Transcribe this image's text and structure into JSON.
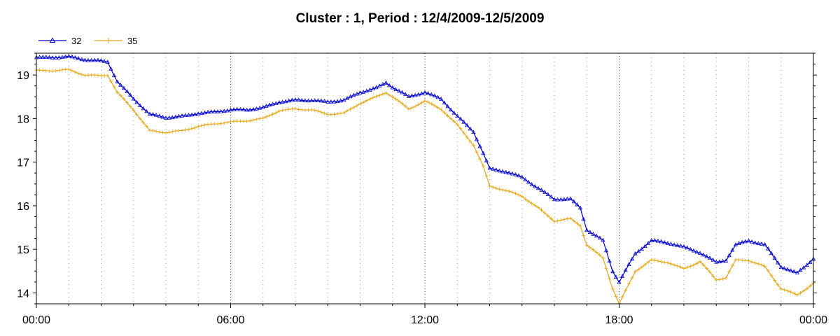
{
  "chart_data": {
    "type": "line",
    "title": "Cluster : 1, Period : 12/4/2009-12/5/2009",
    "xlabel": "",
    "ylabel": "",
    "x_ticks": [
      {
        "hour": 0,
        "label": "00:00"
      },
      {
        "hour": 6,
        "label": "06:00"
      },
      {
        "hour": 12,
        "label": "12:00"
      },
      {
        "hour": 18,
        "label": "18:00"
      },
      {
        "hour": 24,
        "label": "00:00"
      }
    ],
    "y_ticks": [
      {
        "value": 14,
        "label": "14"
      },
      {
        "value": 15,
        "label": "15"
      },
      {
        "value": 16,
        "label": "16"
      },
      {
        "value": 17,
        "label": "17"
      },
      {
        "value": 18,
        "label": "18"
      },
      {
        "value": 19,
        "label": "19"
      }
    ],
    "xlim_hours": [
      0,
      24
    ],
    "ylim": [
      13.75,
      19.5
    ],
    "grid": {
      "vertical_dotted": true,
      "horizontal": false
    },
    "legend_position": "top-left",
    "series": [
      {
        "name": "32",
        "color": "#0000cc",
        "marker": "triangle",
        "points": [
          [
            0,
            19.4
          ],
          [
            0.5,
            19.4
          ],
          [
            1,
            19.42
          ],
          [
            1.5,
            19.35
          ],
          [
            2,
            19.32
          ],
          [
            2.2,
            19.3
          ],
          [
            2.5,
            18.85
          ],
          [
            3,
            18.45
          ],
          [
            3.5,
            18.1
          ],
          [
            4,
            18.02
          ],
          [
            4.5,
            18.05
          ],
          [
            5,
            18.12
          ],
          [
            5.5,
            18.15
          ],
          [
            6,
            18.2
          ],
          [
            6.5,
            18.2
          ],
          [
            7,
            18.25
          ],
          [
            7.5,
            18.38
          ],
          [
            8,
            18.42
          ],
          [
            8.5,
            18.42
          ],
          [
            9,
            18.38
          ],
          [
            9.5,
            18.42
          ],
          [
            10,
            18.6
          ],
          [
            10.5,
            18.7
          ],
          [
            10.8,
            18.82
          ],
          [
            11,
            18.72
          ],
          [
            11.5,
            18.5
          ],
          [
            12,
            18.6
          ],
          [
            12.5,
            18.45
          ],
          [
            13,
            18.05
          ],
          [
            13.5,
            17.7
          ],
          [
            13.8,
            17.2
          ],
          [
            14,
            16.85
          ],
          [
            14.5,
            16.78
          ],
          [
            15,
            16.65
          ],
          [
            15.5,
            16.4
          ],
          [
            16,
            16.15
          ],
          [
            16.5,
            16.15
          ],
          [
            16.8,
            15.95
          ],
          [
            17,
            15.45
          ],
          [
            17.5,
            15.2
          ],
          [
            17.8,
            14.5
          ],
          [
            18,
            14.25
          ],
          [
            18.5,
            14.9
          ],
          [
            19,
            15.2
          ],
          [
            19.5,
            15.15
          ],
          [
            20,
            15.05
          ],
          [
            20.5,
            14.92
          ],
          [
            21,
            14.7
          ],
          [
            21.3,
            14.75
          ],
          [
            21.6,
            15.1
          ],
          [
            22,
            15.2
          ],
          [
            22.5,
            15.1
          ],
          [
            23,
            14.6
          ],
          [
            23.5,
            14.45
          ],
          [
            24,
            14.78
          ]
        ]
      },
      {
        "name": "35",
        "color": "#e6a817",
        "marker": "cross",
        "points": [
          [
            0,
            19.1
          ],
          [
            0.5,
            19.1
          ],
          [
            1,
            19.12
          ],
          [
            1.5,
            19.0
          ],
          [
            2,
            18.98
          ],
          [
            2.2,
            19.0
          ],
          [
            2.5,
            18.6
          ],
          [
            3,
            18.2
          ],
          [
            3.5,
            17.72
          ],
          [
            4,
            17.68
          ],
          [
            4.5,
            17.72
          ],
          [
            5,
            17.82
          ],
          [
            5.5,
            17.88
          ],
          [
            6,
            17.92
          ],
          [
            6.5,
            17.95
          ],
          [
            7,
            18.0
          ],
          [
            7.5,
            18.18
          ],
          [
            8,
            18.22
          ],
          [
            8.5,
            18.2
          ],
          [
            9,
            18.1
          ],
          [
            9.5,
            18.12
          ],
          [
            10,
            18.35
          ],
          [
            10.5,
            18.5
          ],
          [
            10.8,
            18.6
          ],
          [
            11,
            18.5
          ],
          [
            11.5,
            18.22
          ],
          [
            12,
            18.4
          ],
          [
            12.5,
            18.22
          ],
          [
            13,
            17.85
          ],
          [
            13.5,
            17.4
          ],
          [
            13.8,
            16.9
          ],
          [
            14,
            16.45
          ],
          [
            14.5,
            16.35
          ],
          [
            15,
            16.22
          ],
          [
            15.5,
            15.95
          ],
          [
            16,
            15.65
          ],
          [
            16.5,
            15.7
          ],
          [
            16.8,
            15.55
          ],
          [
            17,
            15.1
          ],
          [
            17.5,
            14.8
          ],
          [
            17.8,
            14.1
          ],
          [
            18,
            13.75
          ],
          [
            18.5,
            14.5
          ],
          [
            19,
            14.75
          ],
          [
            19.5,
            14.7
          ],
          [
            20,
            14.55
          ],
          [
            20.5,
            14.72
          ],
          [
            21,
            14.3
          ],
          [
            21.3,
            14.35
          ],
          [
            21.6,
            14.75
          ],
          [
            22,
            14.75
          ],
          [
            22.5,
            14.6
          ],
          [
            23,
            14.1
          ],
          [
            23.5,
            13.95
          ],
          [
            24,
            14.22
          ]
        ]
      }
    ]
  }
}
